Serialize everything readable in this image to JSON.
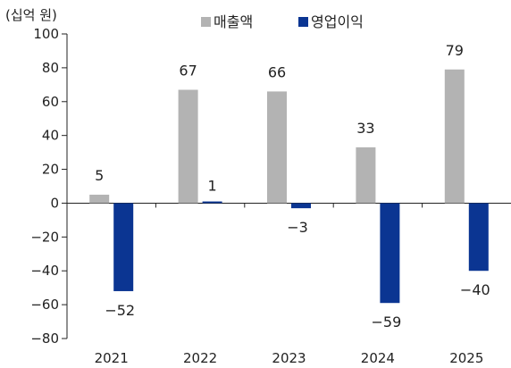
{
  "chart_data": {
    "type": "bar",
    "unit_label": "(십억 원)",
    "categories": [
      "2021",
      "2022",
      "2023",
      "2024",
      "2025"
    ],
    "series": [
      {
        "name": "매출액",
        "color": "#b3b3b3",
        "values": [
          5,
          67,
          66,
          33,
          79
        ],
        "labels": [
          "5",
          "67",
          "66",
          "33",
          "79"
        ]
      },
      {
        "name": "영업이익",
        "color": "#0b3592",
        "values": [
          -52,
          1,
          -3,
          -59,
          -40
        ],
        "labels": [
          "−52",
          "1",
          "−3",
          "−59",
          "−40"
        ]
      }
    ],
    "ylim": [
      -80,
      100
    ],
    "yticks": [
      100,
      80,
      60,
      40,
      20,
      0,
      -20,
      -40,
      -60,
      -80
    ],
    "ytick_labels": [
      "100",
      "80",
      "60",
      "40",
      "20",
      "0",
      "−20",
      "−40",
      "−60",
      "−80"
    ],
    "grid": false,
    "legend_position": "top-center"
  }
}
